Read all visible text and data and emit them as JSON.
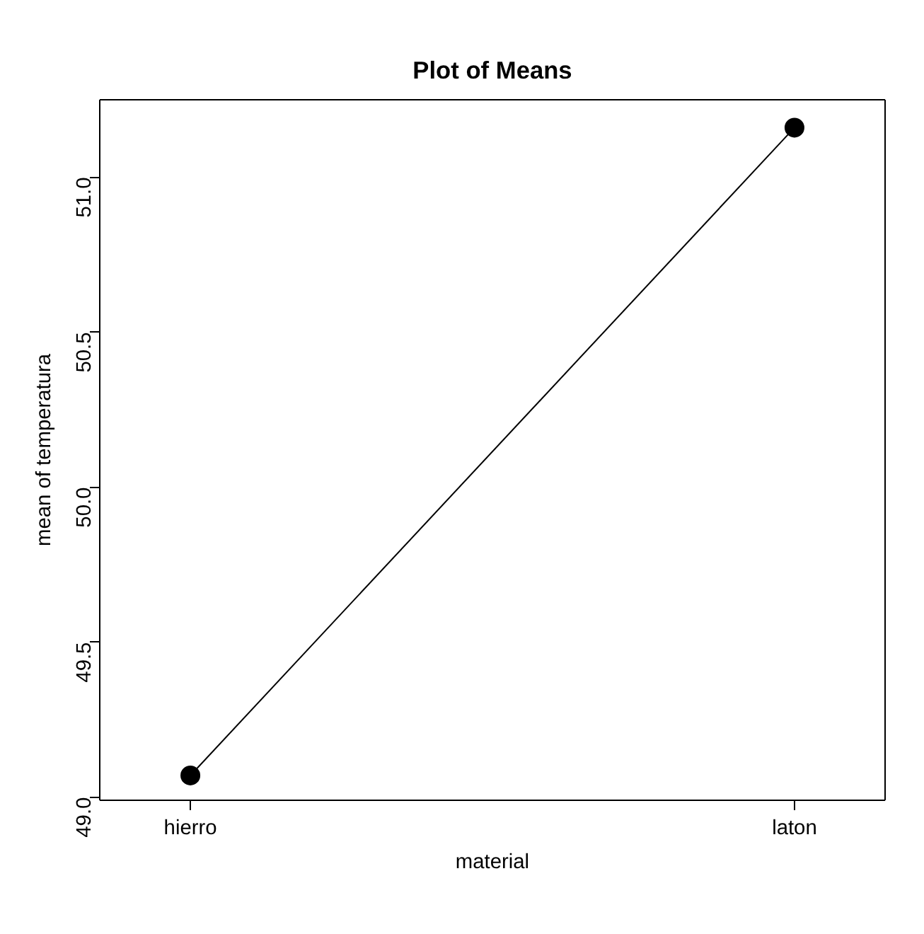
{
  "chart_data": {
    "type": "line",
    "title": "Plot of Means",
    "xlabel": "material",
    "ylabel": "mean of temperatura",
    "categories": [
      "hierro",
      "laton"
    ],
    "values": [
      49.07,
      51.16
    ],
    "color": "#000000",
    "ylim": [
      48.99,
      51.25
    ],
    "yticks": [
      {
        "value": 49.0,
        "label": "49.0"
      },
      {
        "value": 49.5,
        "label": "49.5"
      },
      {
        "value": 50.0,
        "label": "50.0"
      },
      {
        "value": 50.5,
        "label": "50.5"
      },
      {
        "value": 51.0,
        "label": "51.0"
      }
    ],
    "marker": "circle",
    "line_style": "solid",
    "grid": false
  }
}
